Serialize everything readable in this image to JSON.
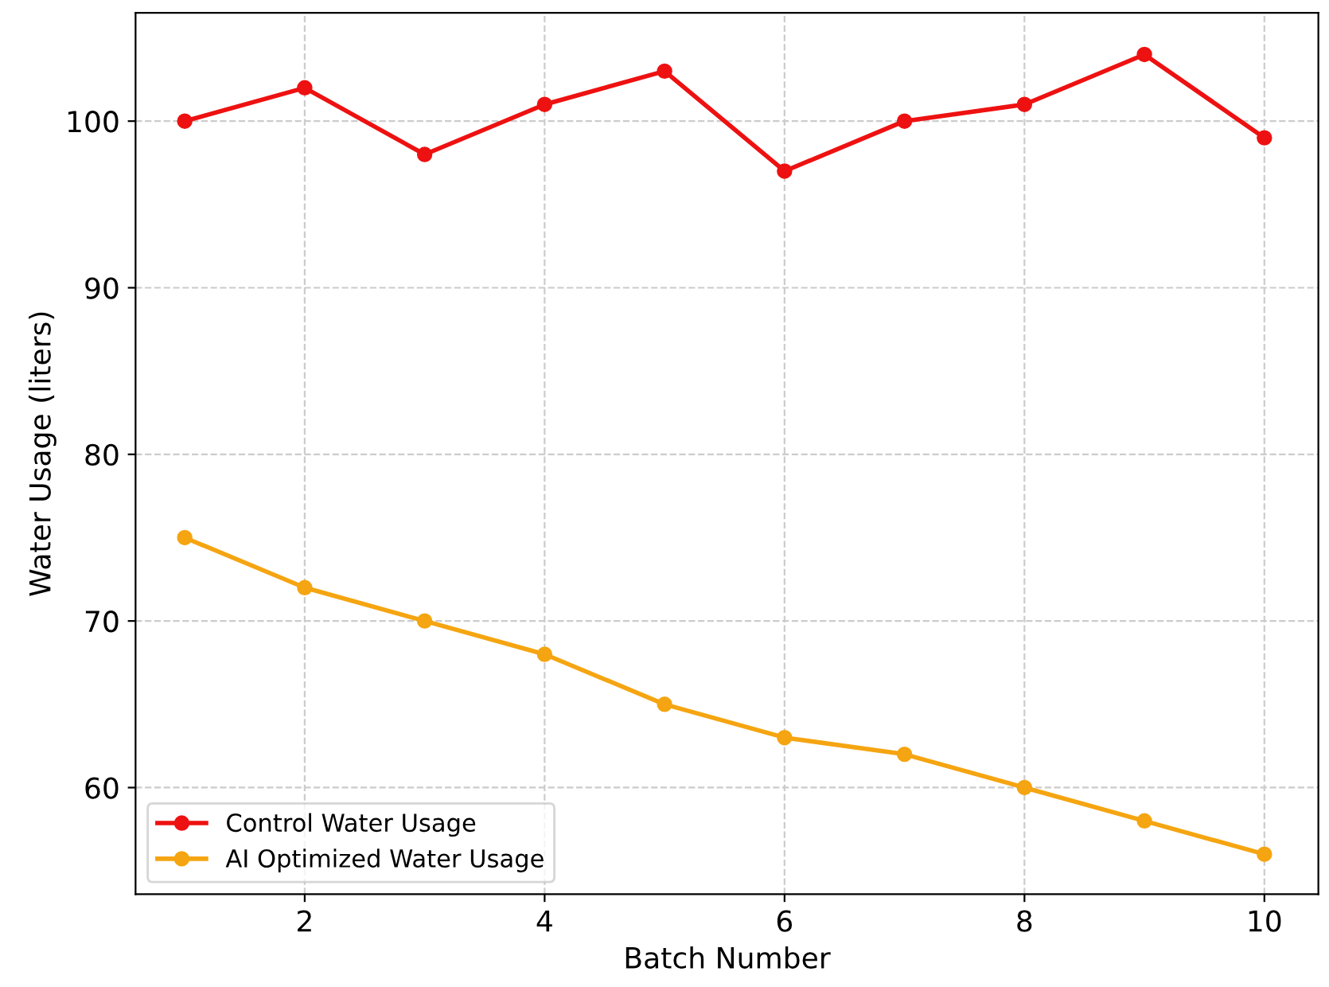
{
  "chart_data": {
    "type": "line",
    "xlabel": "Batch Number",
    "ylabel": "Water Usage (liters)",
    "x": [
      1,
      2,
      3,
      4,
      5,
      6,
      7,
      8,
      9,
      10
    ],
    "series": [
      {
        "name": "Control Water Usage",
        "color": "#ee1111",
        "values": [
          100,
          102,
          98,
          101,
          103,
          97,
          100,
          101,
          104,
          99
        ]
      },
      {
        "name": "AI Optimized Water Usage",
        "color": "#f5a511",
        "values": [
          75,
          72,
          70,
          68,
          65,
          63,
          62,
          60,
          58,
          56
        ]
      }
    ],
    "xlim": [
      0.59,
      10.45
    ],
    "xticks": [
      2,
      4,
      6,
      8,
      10
    ],
    "ylim": [
      53.6,
      106.5
    ],
    "yticks": [
      60,
      70,
      80,
      90,
      100
    ],
    "grid": true,
    "legend": "bottom left",
    "marker": "circle",
    "line_style": "solid"
  }
}
